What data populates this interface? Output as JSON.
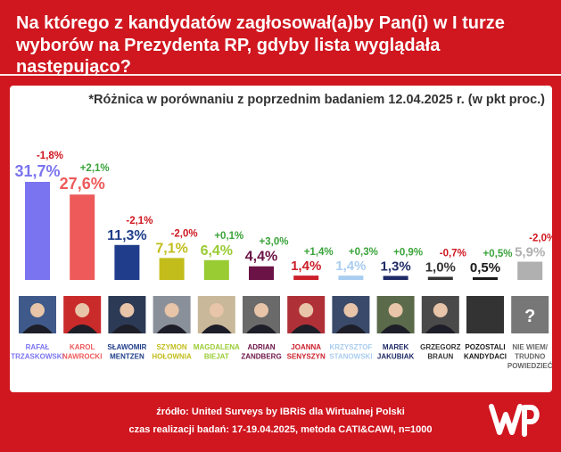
{
  "title": "Na którego z kandydatów zagłosował(a)by Pan(i) w I turze wyborów na Prezydenta RP, gdyby lista wyglądała następująco?",
  "footer": {
    "source": "źródło: United Surveys by IBRiS dla Wirtualnej Polski",
    "method": "czas realizacji badań: 17-19.04.2025, metoda CATI&CAWI, n=1000"
  },
  "logo_icon": "wp-logo",
  "chart_data": {
    "type": "bar",
    "note": "*Różnica w porównaniu z poprzednim badaniem 12.04.2025 r. (w pkt proc.)",
    "ylim": [
      0,
      35
    ],
    "categories": [
      [
        "RAFAŁ",
        "TRZASKOWSKI"
      ],
      [
        "KAROL",
        "NAWROCKI"
      ],
      [
        "SŁAWOMIR",
        "MENTZEN"
      ],
      [
        "SZYMON",
        "HOŁOWNIA"
      ],
      [
        "MAGDALENA",
        "BIEJAT"
      ],
      [
        "ADRIAN",
        "ZANDBERG"
      ],
      [
        "JOANNA",
        "SENYSZYN"
      ],
      [
        "KRZYSZTOF",
        "STANOWSKI"
      ],
      [
        "MAREK",
        "JAKUBIAK"
      ],
      [
        "GRZEGORZ",
        "BRAUN"
      ],
      [
        "POZOSTALI",
        "KANDYDACI"
      ],
      [
        "NIE WIEM/",
        "TRUDNO",
        "POWIEDZIEĆ"
      ]
    ],
    "values": [
      31.7,
      27.6,
      11.3,
      7.1,
      6.4,
      4.4,
      1.4,
      1.4,
      1.3,
      1.0,
      0.5,
      5.9
    ],
    "value_labels": [
      "31,7%",
      "27,6%",
      "11,3%",
      "7,1%",
      "6,4%",
      "4,4%",
      "1,4%",
      "1,4%",
      "1,3%",
      "1,0%",
      "0,5%",
      "5,9%"
    ],
    "changes": [
      -1.8,
      2.1,
      -2.1,
      -2.0,
      0.1,
      3.0,
      1.4,
      0.3,
      0.9,
      -0.7,
      0.5,
      -2.0
    ],
    "change_labels": [
      "-1,8%",
      "+2,1%",
      "-2,1%",
      "-2,0%",
      "+0,1%",
      "+3,0%",
      "+1,4%",
      "+0,3%",
      "+0,9%",
      "-0,7%",
      "+0,5%",
      "-2,0%"
    ],
    "colors": [
      "#7b74f0",
      "#ee5a5a",
      "#1f3d8a",
      "#c2bd1b",
      "#99cc33",
      "#6b1346",
      "#cc1f2a",
      "#a9cdf0",
      "#1f2a66",
      "#333333",
      "#1a1a1a",
      "#b0b0b0"
    ],
    "positive_color": "#3aa33a",
    "negative_color": "#d0161f",
    "unknown_symbol": "?"
  }
}
